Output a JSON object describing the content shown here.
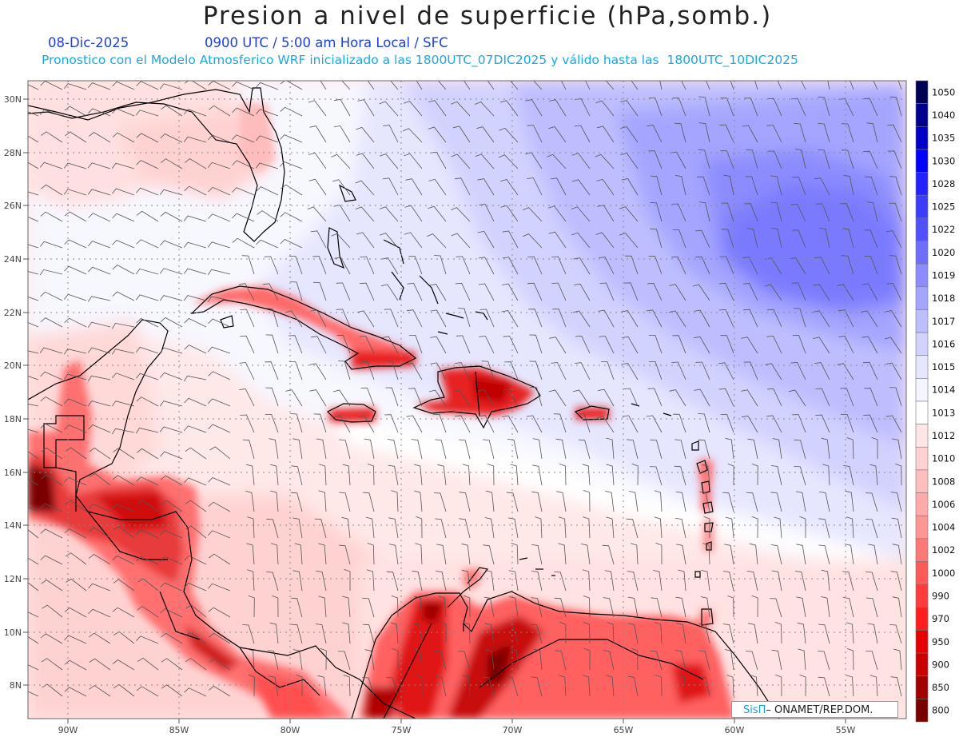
{
  "header": {
    "title": "Presion a nivel de superficie (hPa,somb.)",
    "date": "08-Dic-2025",
    "time_label": "0900 UTC / 5:00 am Hora Local / SFC",
    "model_info": "Pronostico con el Modelo Atmosferico WRF inicializado a las 1800UTC_07DIC2025 y válido hasta las  1800UTC_10DIC2025"
  },
  "map": {
    "lat_labels": [
      "30N",
      "28N",
      "26N",
      "24N",
      "22N",
      "20N",
      "18N",
      "16N",
      "14N",
      "12N",
      "10N",
      "8N"
    ],
    "lon_labels": [
      "90W",
      "85W",
      "80W",
      "75W",
      "70W",
      "65W",
      "60W",
      "55W"
    ],
    "gridline_style": "dotted"
  },
  "colorbar": {
    "labels": [
      "1050",
      "1040",
      "1035",
      "1030",
      "1028",
      "1025",
      "1022",
      "1020",
      "1019",
      "1018",
      "1017",
      "1016",
      "1015",
      "1014",
      "1013",
      "1012",
      "1010",
      "1008",
      "1006",
      "1004",
      "1002",
      "1000",
      "990",
      "970",
      "950",
      "900",
      "850",
      "800"
    ],
    "colors": [
      "#000055",
      "#00008c",
      "#0000c8",
      "#0000ff",
      "#2323ff",
      "#3c3cff",
      "#5050ff",
      "#6e6efa",
      "#8c8cff",
      "#a5a5ff",
      "#bebeff",
      "#d2d2ff",
      "#e6e6ff",
      "#f5f5ff",
      "#ffffff",
      "#ffe6e6",
      "#ffd2d2",
      "#ffbebe",
      "#ffaaaa",
      "#ff9696",
      "#ff7878",
      "#ff5a5a",
      "#ff3c3c",
      "#ff1e1e",
      "#e60000",
      "#c80000",
      "#a00000",
      "#780000"
    ]
  },
  "credit": {
    "sis": "SisΠ",
    "org": "– ONAMET/REP.DOM."
  }
}
